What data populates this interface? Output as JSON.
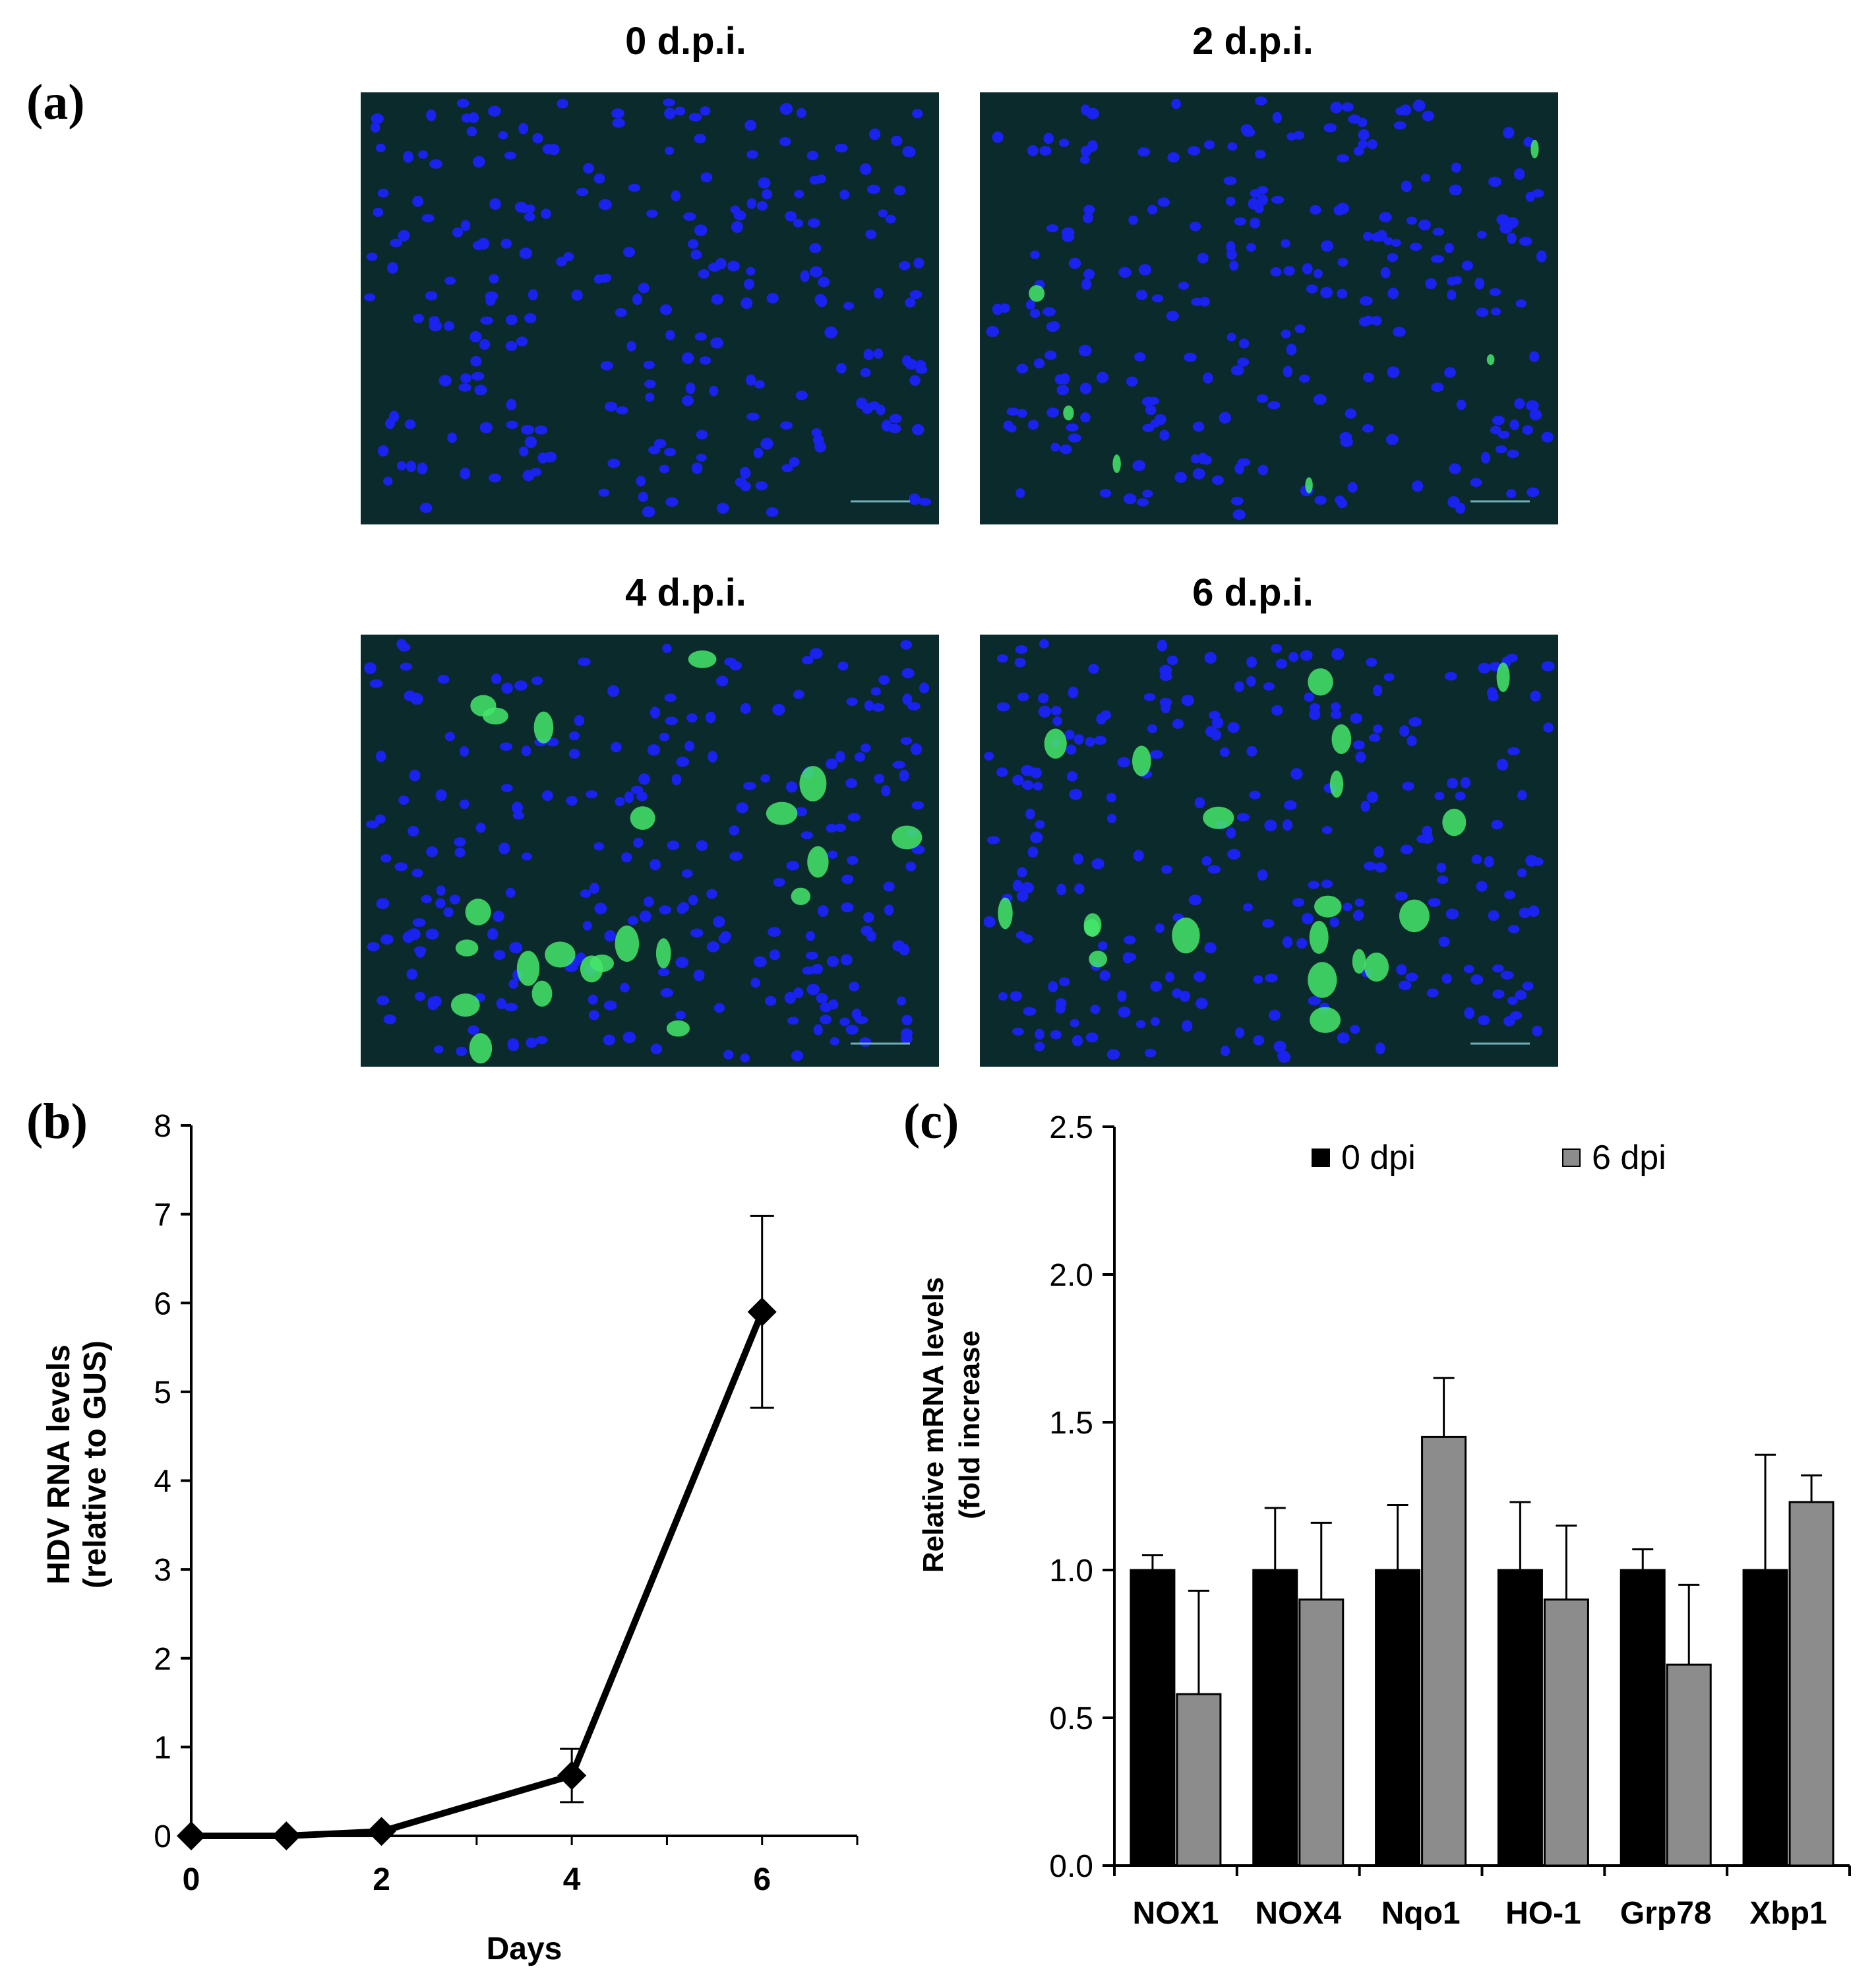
{
  "panels": {
    "a": {
      "label": "(a)",
      "images": [
        {
          "title": "0 d.p.i."
        },
        {
          "title": "2 d.p.i."
        },
        {
          "title": "4 d.p.i."
        },
        {
          "title": "6 d.p.i."
        }
      ]
    },
    "b": {
      "label": "(b)"
    },
    "c": {
      "label": "(c)"
    }
  },
  "colors": {
    "micro_bg": "#0b2a2c",
    "nucleus": "#1a22f0",
    "infected": "#44e86a",
    "bar_0dpi": "#000000",
    "bar_6dpi": "#8c8c8c"
  },
  "chart_data": [
    {
      "panel": "b",
      "type": "line",
      "title": "",
      "xlabel": "Days",
      "ylabel": [
        "HDV RNA levels",
        "(relative to GUS)"
      ],
      "xlim": [
        0,
        7
      ],
      "ylim": [
        0,
        8
      ],
      "xticks": [
        0,
        2,
        4,
        6
      ],
      "yticks": [
        0,
        1,
        2,
        3,
        4,
        5,
        6,
        7,
        8
      ],
      "series": [
        {
          "name": "HDV RNA",
          "x": [
            0,
            1,
            2,
            4,
            6
          ],
          "y": [
            0,
            0,
            0.05,
            0.68,
            5.9
          ],
          "error": [
            0,
            0,
            0,
            0.3,
            1.08
          ]
        }
      ]
    },
    {
      "panel": "c",
      "type": "bar",
      "title": "",
      "xlabel": "",
      "ylabel": [
        "Relative mRNA levels",
        "(fold increase"
      ],
      "ylim": [
        0,
        2.5
      ],
      "yticks": [
        "0.0",
        "0.5",
        "1.0",
        "1.5",
        "2.0",
        "2.5"
      ],
      "categories": [
        "NOX1",
        "NOX4",
        "Nqo1",
        "HO-1",
        "Grp78",
        "Xbp1"
      ],
      "series": [
        {
          "name": "0 dpi",
          "values": [
            1.0,
            1.0,
            1.0,
            1.0,
            1.0,
            1.0
          ],
          "error": [
            0.05,
            0.21,
            0.22,
            0.23,
            0.07,
            0.39
          ]
        },
        {
          "name": "6 dpi",
          "values": [
            0.58,
            0.9,
            1.45,
            0.9,
            0.68,
            1.23
          ],
          "error": [
            0.35,
            0.26,
            0.2,
            0.25,
            0.27,
            0.09
          ]
        }
      ],
      "legend": "top"
    }
  ]
}
